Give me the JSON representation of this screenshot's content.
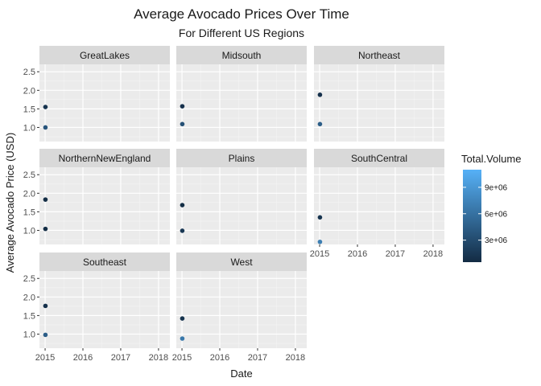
{
  "chart_data": {
    "type": "scatter",
    "title": "Average Avocado Prices Over Time",
    "subtitle": "For Different US Regions",
    "xlabel": "Date",
    "ylabel": "Average Avocado Price (USD)",
    "x_ticks": [
      "2015",
      "2016",
      "2017",
      "2018"
    ],
    "y_ticks": [
      "1.0",
      "1.5",
      "2.0",
      "2.5"
    ],
    "xlim": [
      2014.85,
      2018.3
    ],
    "ylim": [
      0.62,
      2.7
    ],
    "grid": true,
    "legend": {
      "title": "Total.Volume",
      "position": "right",
      "ticks": [
        "3e+06",
        "6e+06",
        "9e+06"
      ],
      "range": [
        500000,
        11000000
      ],
      "color_low": "#132b43",
      "color_high": "#56b1f7"
    },
    "panels": [
      {
        "name": "GreatLakes",
        "points": [
          {
            "x": "2015-01-04",
            "y": 1.55,
            "volume": 1200000
          },
          {
            "x": "2015-01-04",
            "y": 1.0,
            "volume": 3800000
          }
        ]
      },
      {
        "name": "Midsouth",
        "points": [
          {
            "x": "2015-01-04",
            "y": 1.57,
            "volume": 1000000
          },
          {
            "x": "2015-01-04",
            "y": 1.09,
            "volume": 3500000
          }
        ]
      },
      {
        "name": "Northeast",
        "points": [
          {
            "x": "2015-01-04",
            "y": 1.88,
            "volume": 1000000
          },
          {
            "x": "2015-01-04",
            "y": 1.09,
            "volume": 4500000
          }
        ]
      },
      {
        "name": "NorthernNewEngland",
        "points": [
          {
            "x": "2015-01-04",
            "y": 1.83,
            "volume": 700000
          },
          {
            "x": "2015-01-04",
            "y": 1.04,
            "volume": 700000
          }
        ]
      },
      {
        "name": "Plains",
        "points": [
          {
            "x": "2015-01-04",
            "y": 1.68,
            "volume": 700000
          },
          {
            "x": "2015-01-04",
            "y": 0.99,
            "volume": 1500000
          }
        ]
      },
      {
        "name": "SouthCentral",
        "points": [
          {
            "x": "2015-01-04",
            "y": 1.35,
            "volume": 1200000
          },
          {
            "x": "2015-01-04",
            "y": 0.69,
            "volume": 7000000
          }
        ]
      },
      {
        "name": "Southeast",
        "points": [
          {
            "x": "2015-01-04",
            "y": 1.76,
            "volume": 1000000
          },
          {
            "x": "2015-01-04",
            "y": 0.98,
            "volume": 4500000
          }
        ]
      },
      {
        "name": "West",
        "points": [
          {
            "x": "2015-01-04",
            "y": 1.42,
            "volume": 1200000
          },
          {
            "x": "2015-01-04",
            "y": 0.88,
            "volume": 6500000
          }
        ]
      }
    ]
  }
}
